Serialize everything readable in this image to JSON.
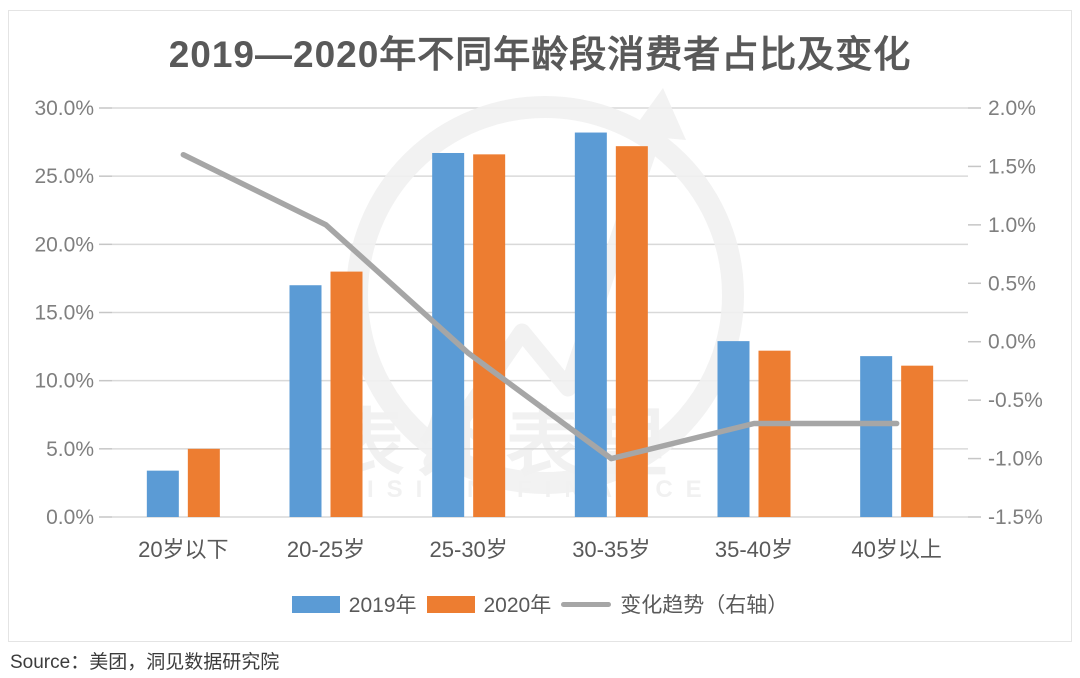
{
  "chart_data": {
    "type": "bar",
    "title": "2019—2020年不同年龄段消费者占比及变化",
    "categories": [
      "20岁以下",
      "20-25岁",
      "25-30岁",
      "30-35岁",
      "35-40岁",
      "40岁以上"
    ],
    "series": [
      {
        "name": "2019年",
        "kind": "bar",
        "axis": "left",
        "color": "#5B9BD5",
        "values": [
          3.4,
          17.0,
          26.7,
          28.2,
          12.9,
          11.8
        ]
      },
      {
        "name": "2020年",
        "kind": "bar",
        "axis": "left",
        "color": "#ED7D31",
        "values": [
          5.0,
          18.0,
          26.6,
          27.2,
          12.2,
          11.1
        ]
      },
      {
        "name": "变化趋势（右轴）",
        "kind": "line",
        "axis": "right",
        "color": "#A6A6A6",
        "values": [
          1.6,
          1.0,
          -0.1,
          -1.0,
          -0.7,
          -0.7
        ]
      }
    ],
    "left_axis": {
      "ticks": [
        "30.0%",
        "25.0%",
        "20.0%",
        "15.0%",
        "10.0%",
        "5.0%",
        "0.0%"
      ],
      "min": 0,
      "max": 30
    },
    "right_axis": {
      "ticks": [
        "2.0%",
        "1.5%",
        "1.0%",
        "0.5%",
        "0.0%",
        "-0.5%",
        "-1.0%",
        "-1.5%"
      ],
      "min": -1.5,
      "max": 2.0
    },
    "grid": true,
    "legend_position": "bottom",
    "unit": "%",
    "colors": {
      "grid_line": "#d9d9d9",
      "tick_mark": "#c6c6c6",
      "axis_label": "#7f7f7f",
      "category_label": "#595959",
      "title": "#595959",
      "watermark": "#f1f1f1"
    }
  },
  "watermark": {
    "text": "表外表里",
    "subtext": "VISION FINANCE"
  },
  "footer": {
    "source": "Source：美团，洞见数据研究院"
  }
}
